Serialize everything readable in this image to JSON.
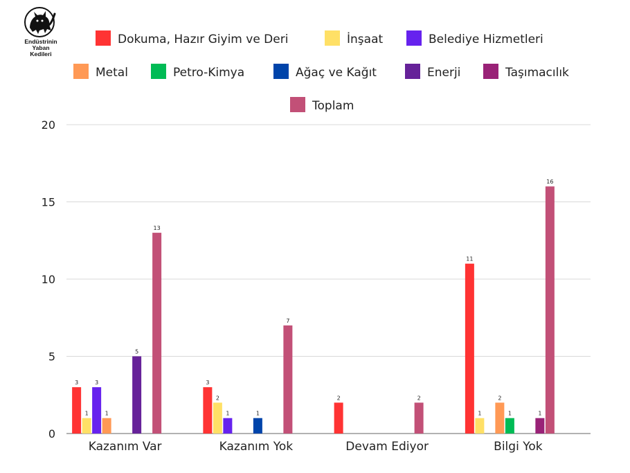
{
  "logo": {
    "icon": "black-cat-icon",
    "lines": [
      "Endüstrinin",
      "Yaban",
      "Kedileri"
    ]
  },
  "chart_data": {
    "type": "bar",
    "title": "",
    "xlabel": "",
    "ylabel": "",
    "ylim": [
      0,
      20
    ],
    "yticks": [
      0,
      5,
      10,
      15,
      20
    ],
    "grid": true,
    "legend_position": "top",
    "categories": [
      "Kazanım Var",
      "Kazanım Yok",
      "Devam Ediyor",
      "Bilgi Yok"
    ],
    "series": [
      {
        "name": "Dokuma, Hazır Giyim ve Deri",
        "color": "#ff3333",
        "values": [
          3,
          3,
          2,
          11
        ]
      },
      {
        "name": "İnşaat",
        "color": "#ffe066",
        "values": [
          1,
          2,
          0,
          1
        ]
      },
      {
        "name": "Belediye Hizmetleri",
        "color": "#6622ee",
        "values": [
          3,
          1,
          0,
          0
        ]
      },
      {
        "name": "Metal",
        "color": "#ff9955",
        "values": [
          1,
          0,
          0,
          2
        ]
      },
      {
        "name": "Petro-Kimya",
        "color": "#00bb55",
        "values": [
          0,
          0,
          0,
          1
        ]
      },
      {
        "name": "Ağaç ve Kağıt",
        "color": "#0044aa",
        "values": [
          0,
          1,
          0,
          0
        ]
      },
      {
        "name": "Enerji",
        "color": "#662299",
        "values": [
          5,
          0,
          0,
          0
        ]
      },
      {
        "name": "Taşımacılık",
        "color": "#992277",
        "values": [
          0,
          0,
          0,
          1
        ]
      },
      {
        "name": "Toplam",
        "color": "#c25077",
        "values": [
          13,
          7,
          2,
          16
        ]
      }
    ]
  }
}
